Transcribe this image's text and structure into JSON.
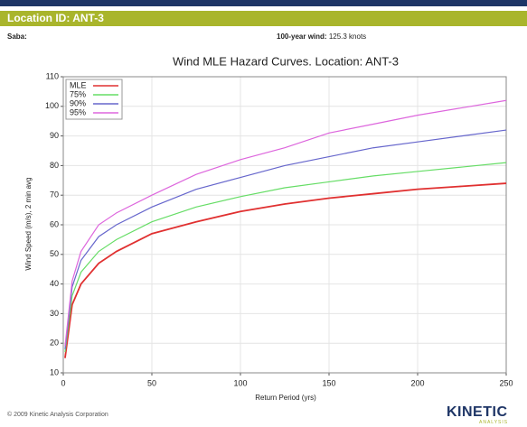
{
  "header": {
    "title": "Location ID: ANT-3",
    "location": "Saba:",
    "wind_label": "100-year wind:",
    "wind_value": "125.3 knots"
  },
  "footer": {
    "copyright": "© 2009 Kinetic Analysis Corporation",
    "logo": "KINETIC",
    "logo_sub": "ANALYSIS"
  },
  "chart_data": {
    "type": "line",
    "title": "Wind MLE Hazard Curves. Location: ANT-3",
    "x_label": "Return Period (yrs)",
    "y_label": "Wind Speed (m/s), 2 min avg",
    "x": [
      1,
      5,
      10,
      20,
      30,
      50,
      75,
      100,
      125,
      150,
      175,
      200,
      225,
      250
    ],
    "series": [
      {
        "name": "MLE",
        "color": "#e03030",
        "values": [
          15,
          33,
          40,
          47,
          51,
          57,
          61,
          64.5,
          67,
          69,
          70.5,
          72,
          73,
          74
        ]
      },
      {
        "name": "75%",
        "color": "#66dd66",
        "values": [
          17,
          36,
          44,
          51,
          55,
          61,
          66,
          69.5,
          72.5,
          74.5,
          76.5,
          78,
          79.5,
          81
        ]
      },
      {
        "name": "90%",
        "color": "#6666cc",
        "values": [
          18,
          39,
          48,
          56,
          60,
          66,
          72,
          76,
          80,
          83,
          86,
          88,
          90,
          92
        ]
      },
      {
        "name": "95%",
        "color": "#dd66dd",
        "values": [
          19,
          41,
          51,
          60,
          64,
          70,
          77,
          82,
          86,
          91,
          94,
          97,
          99.5,
          102
        ]
      }
    ],
    "xlim": [
      0,
      250
    ],
    "xticks": [
      0,
      50,
      100,
      150,
      200,
      250
    ],
    "ylim": [
      10,
      110
    ],
    "yticks": [
      10,
      20,
      30,
      40,
      50,
      60,
      70,
      80,
      90,
      100,
      110
    ],
    "grid": true,
    "legend": "upper-left"
  }
}
